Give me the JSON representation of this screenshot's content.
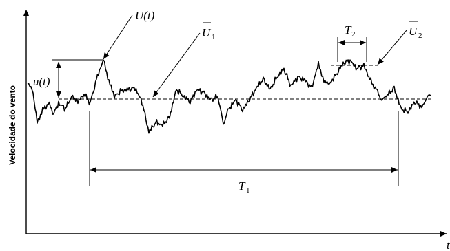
{
  "axes": {
    "y_label": "Velocidade do vento",
    "x_label": "t"
  },
  "labels": {
    "U_t": "U(t)",
    "u_t": "u(t)",
    "U1_main": "U",
    "U1_sub": "1",
    "U2_main": "U",
    "U2_sub": "2",
    "T1_main": "T",
    "T1_sub": "1",
    "T2_main": "T",
    "T2_sub": "2"
  }
}
